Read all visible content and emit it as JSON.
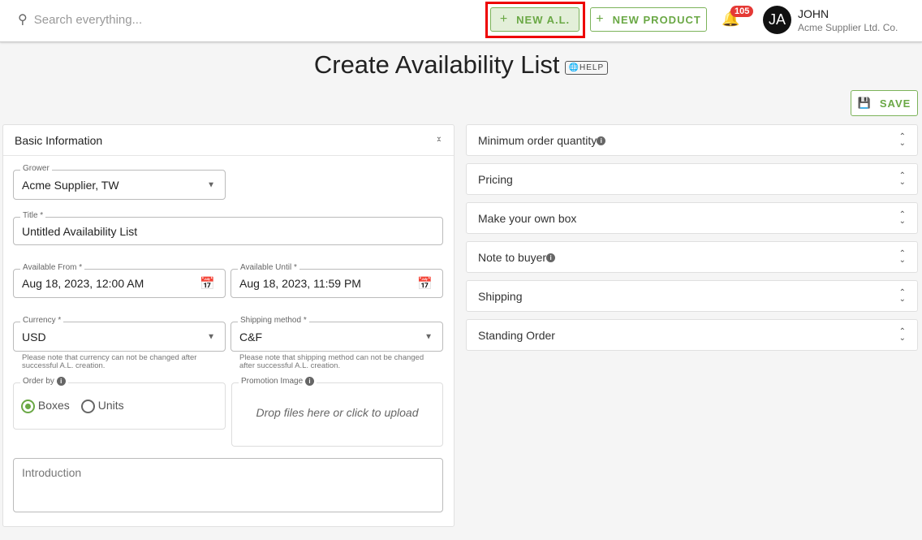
{
  "header": {
    "search_placeholder": "Search everything...",
    "new_al": "NEW A.L.",
    "new_product": "NEW PRODUCT",
    "notifications": "105",
    "avatar_initials": "JA",
    "user_name": "JOHN",
    "company": "Acme Supplier Ltd. Co."
  },
  "page": {
    "title": "Create Availability List",
    "help": "HELP",
    "save": "SAVE"
  },
  "basic": {
    "heading": "Basic Information",
    "grower": {
      "label": "Grower",
      "value": "Acme Supplier, TW"
    },
    "title": {
      "label": "Title *",
      "value": "Untitled Availability List"
    },
    "from": {
      "label": "Available From *",
      "value": "Aug 18, 2023, 12:00 AM"
    },
    "until": {
      "label": "Available Until *",
      "value": "Aug 18, 2023, 11:59 PM"
    },
    "currency": {
      "label": "Currency *",
      "value": "USD",
      "note": "Please note that currency can not be changed after successful A.L. creation."
    },
    "shipping": {
      "label": "Shipping method *",
      "value": "C&F",
      "note": "Please note that shipping method can not be changed after successful A.L. creation."
    },
    "order_by": {
      "label": "Order by",
      "options": [
        "Boxes",
        "Units"
      ],
      "selected": "Boxes"
    },
    "promo": {
      "label": "Promotion Image",
      "drop": "Drop files here or click to upload"
    },
    "intro": {
      "placeholder": "Introduction"
    }
  },
  "sections": [
    "Minimum order quantity",
    "Pricing",
    "Make your own box",
    "Note to buyer",
    "Shipping",
    "Standing Order"
  ],
  "colors": {
    "accent": "#6aa845",
    "highlight": "#e00000",
    "badge": "#e53935"
  }
}
